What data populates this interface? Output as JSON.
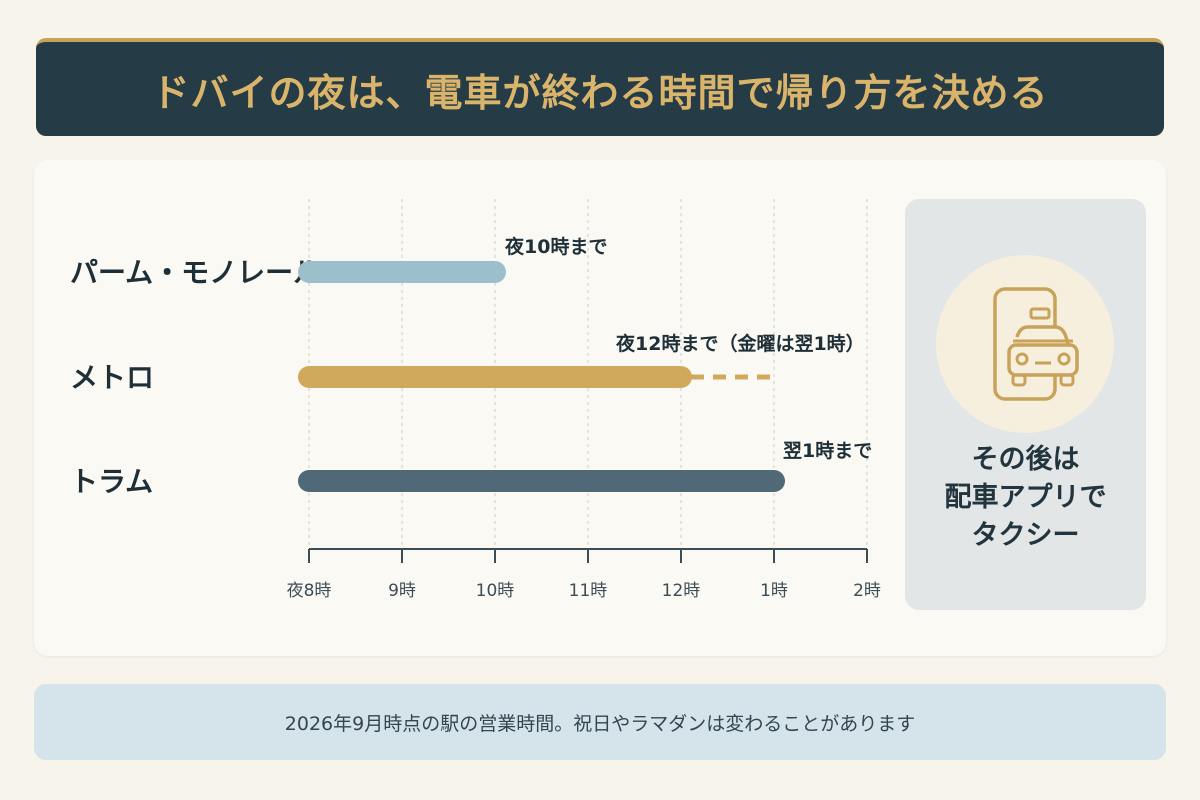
{
  "title": "ドバイの夜は、電車が終わる時間で帰り方を決める",
  "chart_data": {
    "type": "bar",
    "orientation": "horizontal",
    "x_ticks": [
      "夜8時",
      "9時",
      "10時",
      "11時",
      "12時",
      "1時",
      "2時"
    ],
    "x_start_hours": 20,
    "x_range_hours": [
      20,
      26
    ],
    "series": [
      {
        "category": "パーム・モノレール",
        "start": 20,
        "end": 22,
        "label": "夜10時まで",
        "color": "#9dbfcb"
      },
      {
        "category": "メトロ",
        "start": 20,
        "end": 24,
        "extended_end": 25,
        "label": "夜12時まで（金曜は翌1時）",
        "color": "#d0a95d"
      },
      {
        "category": "トラム",
        "start": 20,
        "end": 25,
        "label": "翌1時まで",
        "color": "#4f6976"
      }
    ],
    "grid": "vertical-dashed"
  },
  "side_panel": {
    "icon": "phone-taxi-icon",
    "lines": [
      "その後は",
      "配車アプリで",
      "タクシー"
    ]
  },
  "footer": "2026年9月時点の駅の営業時間。祝日やラマダンは変わることがあります"
}
